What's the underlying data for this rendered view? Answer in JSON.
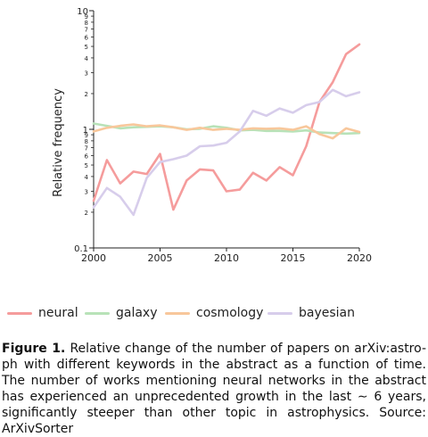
{
  "chart_data": {
    "type": "line",
    "ylabel": "Relative frequency",
    "xlabel": "",
    "xlim": [
      2000,
      2020
    ],
    "ylim": [
      0.1,
      10
    ],
    "yscale": "log",
    "x_ticks": [
      "2000",
      "2005",
      "2010",
      "2015",
      "2020"
    ],
    "y_major_ticks": [
      {
        "value": 0.1,
        "label": "0.1"
      },
      {
        "value": 1,
        "label": "1"
      },
      {
        "value": 10,
        "label": "10"
      }
    ],
    "y_minor_ticks": [
      {
        "value": 0.2,
        "label": "2"
      },
      {
        "value": 0.3,
        "label": "3"
      },
      {
        "value": 0.4,
        "label": "4"
      },
      {
        "value": 0.5,
        "label": "5"
      },
      {
        "value": 0.6,
        "label": "6"
      },
      {
        "value": 0.7,
        "label": "7"
      },
      {
        "value": 0.8,
        "label": "8"
      },
      {
        "value": 0.9,
        "label": "9"
      },
      {
        "value": 2,
        "label": "2"
      },
      {
        "value": 3,
        "label": "3"
      },
      {
        "value": 4,
        "label": "4"
      },
      {
        "value": 5,
        "label": "5"
      },
      {
        "value": 6,
        "label": "6"
      },
      {
        "value": 7,
        "label": "7"
      },
      {
        "value": 8,
        "label": "8"
      },
      {
        "value": 9,
        "label": "9"
      }
    ],
    "grid": false,
    "legend_position": "bottom",
    "x": [
      2000,
      2001,
      2002,
      2003,
      2004,
      2005,
      2006,
      2007,
      2008,
      2009,
      2010,
      2011,
      2012,
      2013,
      2014,
      2015,
      2016,
      2017,
      2018,
      2019,
      2020
    ],
    "series": [
      {
        "name": "neural",
        "color": "#f59c9c",
        "values": [
          0.25,
          0.55,
          0.35,
          0.44,
          0.42,
          0.62,
          0.21,
          0.37,
          0.46,
          0.45,
          0.3,
          0.31,
          0.43,
          0.37,
          0.48,
          0.41,
          0.72,
          1.7,
          2.5,
          4.3,
          5.2
        ]
      },
      {
        "name": "galaxy",
        "color": "#b8e2b8",
        "values": [
          1.12,
          1.07,
          1.02,
          1.04,
          1.05,
          1.06,
          1.04,
          1.0,
          1.01,
          1.06,
          1.03,
          0.98,
          0.99,
          0.97,
          0.97,
          0.96,
          0.98,
          0.94,
          0.93,
          0.92,
          0.93
        ]
      },
      {
        "name": "cosmology",
        "color": "#f8c79b",
        "values": [
          0.96,
          1.03,
          1.07,
          1.1,
          1.06,
          1.08,
          1.04,
          0.99,
          1.03,
          0.99,
          1.01,
          0.99,
          1.02,
          1.01,
          1.02,
          0.99,
          1.06,
          0.91,
          0.84,
          1.02,
          0.95
        ]
      },
      {
        "name": "bayesian",
        "color": "#d7cdeb",
        "values": [
          0.22,
          0.32,
          0.27,
          0.19,
          0.39,
          0.53,
          0.56,
          0.6,
          0.72,
          0.73,
          0.77,
          0.96,
          1.43,
          1.3,
          1.5,
          1.38,
          1.6,
          1.7,
          2.15,
          1.9,
          2.05
        ]
      }
    ]
  },
  "caption": {
    "label": "Figure 1.",
    "text": "Relative change of the number of papers on arXiv:astro-ph with different keywords in the abstract as a function of time. The number of works mentioning neural networks in the abstract has experienced an unprecedented growth in the last ∼ 6 years, significantly steeper than other topic in astrophysics. Source: ArXivSorter"
  }
}
